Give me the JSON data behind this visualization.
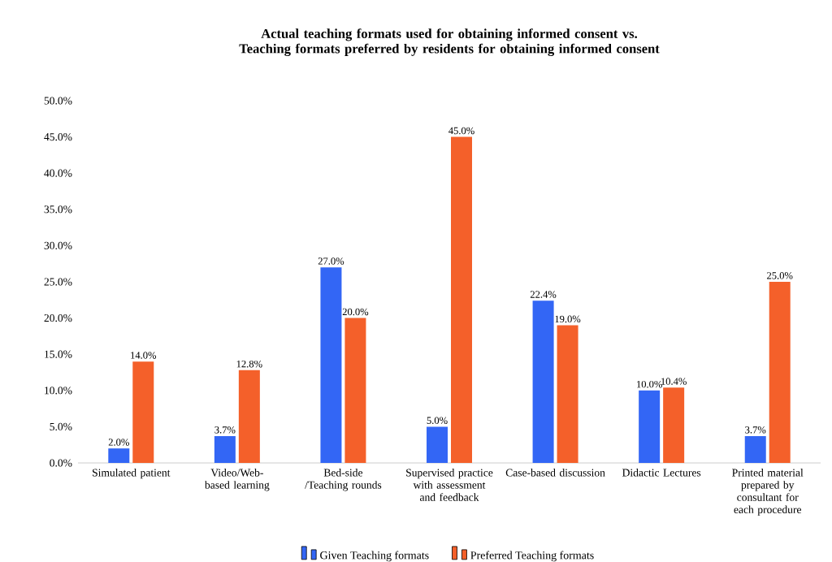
{
  "chart_data": {
    "type": "bar",
    "title": "Actual teaching formats used for obtaining informed consent vs. Teaching formats preferred by residents for obtaining informed consent",
    "categories": [
      "Simulated patient",
      "Video/Web-based learning",
      "Bed-side /Teaching rounds",
      "Supervised practice with assessment and feedback",
      "Case-based discussion",
      "Didactic Lectures",
      "Printed material prepared by consultant for each procedure"
    ],
    "series": [
      {
        "name": "Given Teaching formats",
        "color": "#3366f5",
        "values": [
          2.0,
          3.7,
          27.0,
          5.0,
          22.4,
          10.0,
          3.7
        ],
        "value_labels": [
          "2.0%",
          "3.7%",
          "27.0%",
          "5.0%",
          "22.4%",
          "10.0%",
          "3.7%"
        ]
      },
      {
        "name": "Preferred Teaching formats",
        "color": "#f4602a",
        "values": [
          14.0,
          12.8,
          20.0,
          45.0,
          19.0,
          10.4,
          25.0
        ],
        "value_labels": [
          "14.0%",
          "12.8%",
          "20.0%",
          "45.0%",
          "19.0%",
          "10.4%",
          "25.0%"
        ]
      }
    ],
    "ylim": [
      0,
      50
    ],
    "yticks": [
      {
        "value": 0,
        "label": "0.0%"
      },
      {
        "value": 5,
        "label": "5.0%"
      },
      {
        "value": 10,
        "label": "10.0%"
      },
      {
        "value": 15,
        "label": "15.0%"
      },
      {
        "value": 20,
        "label": "20.0%"
      },
      {
        "value": 25,
        "label": "25.0%"
      },
      {
        "value": 30,
        "label": "30.0%"
      },
      {
        "value": 35,
        "label": "35.0%"
      },
      {
        "value": 40,
        "label": "40.0%"
      },
      {
        "value": 45,
        "label": "45.0%"
      },
      {
        "value": 50,
        "label": "50.0%"
      }
    ],
    "legend": "bottom"
  }
}
